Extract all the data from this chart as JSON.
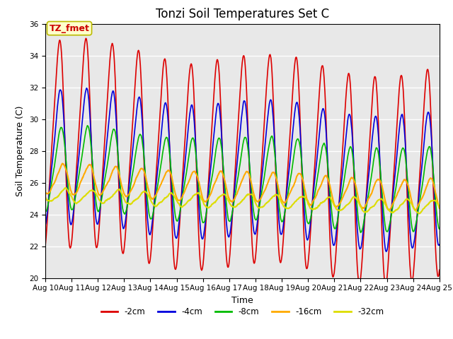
{
  "title": "Tonzi Soil Temperatures Set C",
  "xlabel": "Time",
  "ylabel": "Soil Temperature (C)",
  "ylim": [
    20,
    36
  ],
  "start_day": 10,
  "end_day": 25,
  "annotation": "TZ_fmet",
  "lines": {
    "-2cm": {
      "color": "#dd0000",
      "lw": 1.2,
      "amplitude": 6.2,
      "mean": 28.2,
      "phase": 0.0,
      "trend": -0.13
    },
    "-4cm": {
      "color": "#0000dd",
      "lw": 1.2,
      "amplitude": 4.0,
      "mean": 27.5,
      "phase": 0.18,
      "trend": -0.1
    },
    "-8cm": {
      "color": "#00bb00",
      "lw": 1.2,
      "amplitude": 2.5,
      "mean": 26.8,
      "phase": 0.42,
      "trend": -0.09
    },
    "-16cm": {
      "color": "#ffaa00",
      "lw": 1.5,
      "amplitude": 0.9,
      "mean": 26.2,
      "phase": 0.85,
      "trend": -0.07
    },
    "-32cm": {
      "color": "#dddd00",
      "lw": 1.5,
      "amplitude": 0.4,
      "mean": 25.2,
      "phase": 1.5,
      "trend": -0.05
    }
  },
  "background_color": "#e8e8e8",
  "grid_color": "#ffffff",
  "legend_labels": [
    "-2cm",
    "-4cm",
    "-8cm",
    "-16cm",
    "-32cm"
  ],
  "title_fontsize": 12,
  "label_fontsize": 9,
  "tick_fontsize": 7.5
}
